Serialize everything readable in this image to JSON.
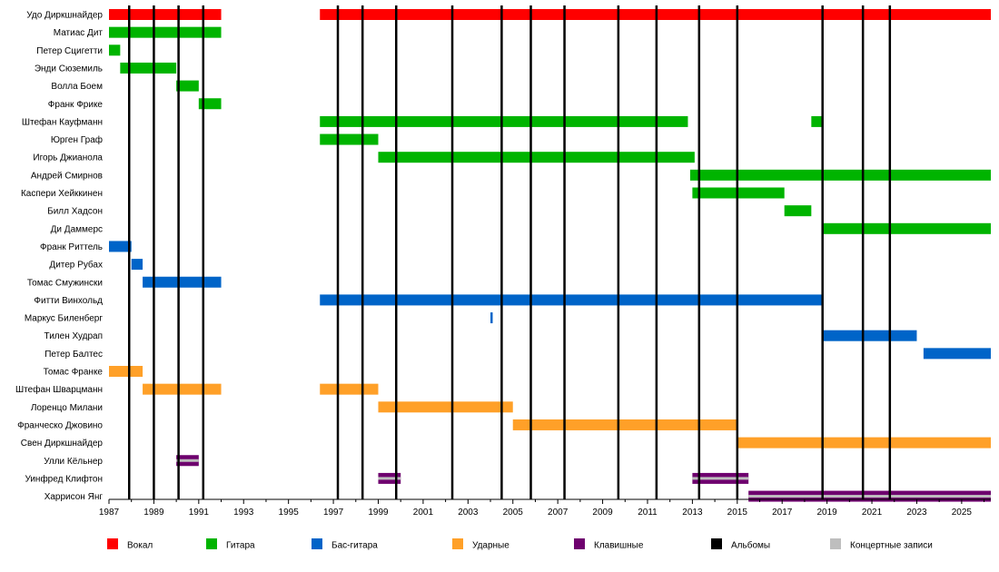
{
  "chart_data": {
    "type": "timeline",
    "title": "",
    "x_range": [
      1987,
      2026.3
    ],
    "x_ticks": [
      "1987",
      "1989",
      "1991",
      "1993",
      "1995",
      "1997",
      "1999",
      "2001",
      "2003",
      "2005",
      "2007",
      "2009",
      "2011",
      "2013",
      "2015",
      "2017",
      "2019",
      "2021",
      "2023",
      "2025"
    ],
    "colors": {
      "vocals": "#ff0000",
      "guitar": "#00b400",
      "bass": "#0064c8",
      "drums": "#ffa028",
      "keys": "#6e006e",
      "albums": "#000000",
      "live": "#bebebe"
    },
    "legend": [
      {
        "key": "vocals",
        "label": "Вокал"
      },
      {
        "key": "guitar",
        "label": "Гитара"
      },
      {
        "key": "bass",
        "label": "Бас-гитара"
      },
      {
        "key": "drums",
        "label": "Ударные"
      },
      {
        "key": "keys",
        "label": "Клавишные"
      },
      {
        "key": "albums",
        "label": "Альбомы"
      },
      {
        "key": "live",
        "label": "Концертные записи"
      }
    ],
    "albums": [
      1987.9,
      1989.0,
      1990.1,
      1991.2,
      1997.2,
      1998.3,
      1999.8,
      2002.3,
      2004.5,
      2005.8,
      2007.3,
      2009.7,
      2011.4,
      2013.3,
      2015.0,
      2018.8,
      2020.6,
      2021.8
    ],
    "members": [
      {
        "name": "Удо Диркшнайдер",
        "spans": [
          {
            "r": "vocals",
            "s": 1987.0,
            "e": 1992.0
          },
          {
            "r": "vocals",
            "s": 1996.4,
            "e": 2026.3
          }
        ]
      },
      {
        "name": "Матиас Дит",
        "spans": [
          {
            "r": "guitar",
            "s": 1987.0,
            "e": 1992.0
          }
        ]
      },
      {
        "name": "Петер Сцигетти",
        "spans": [
          {
            "r": "guitar",
            "s": 1987.0,
            "e": 1987.5
          }
        ]
      },
      {
        "name": "Энди Сюземиль",
        "spans": [
          {
            "r": "guitar",
            "s": 1987.5,
            "e": 1990.0
          }
        ]
      },
      {
        "name": "Волла Боем",
        "spans": [
          {
            "r": "guitar",
            "s": 1990.0,
            "e": 1991.0
          }
        ]
      },
      {
        "name": "Франк Фрике",
        "spans": [
          {
            "r": "guitar",
            "s": 1991.0,
            "e": 1992.0
          }
        ]
      },
      {
        "name": "Штефан Кауфманн",
        "spans": [
          {
            "r": "guitar",
            "s": 1996.4,
            "e": 2012.8
          },
          {
            "r": "guitar",
            "s": 2018.3,
            "e": 2018.8
          }
        ]
      },
      {
        "name": "Юрген Граф",
        "spans": [
          {
            "r": "guitar",
            "s": 1996.4,
            "e": 1999.0
          }
        ]
      },
      {
        "name": "Игорь Джианола",
        "spans": [
          {
            "r": "guitar",
            "s": 1999.0,
            "e": 2013.1
          }
        ]
      },
      {
        "name": "Андрей Смирнов",
        "spans": [
          {
            "r": "guitar",
            "s": 2012.9,
            "e": 2026.3
          }
        ]
      },
      {
        "name": "Каспери Хейккинен",
        "spans": [
          {
            "r": "guitar",
            "s": 2013.0,
            "e": 2017.1
          }
        ]
      },
      {
        "name": "Билл Хадсон",
        "spans": [
          {
            "r": "guitar",
            "s": 2017.1,
            "e": 2018.3
          }
        ]
      },
      {
        "name": "Ди Даммерс",
        "spans": [
          {
            "r": "guitar",
            "s": 2018.8,
            "e": 2026.3
          }
        ]
      },
      {
        "name": "Франк Риттель",
        "spans": [
          {
            "r": "bass",
            "s": 1987.0,
            "e": 1988.0
          }
        ]
      },
      {
        "name": "Дитер Рубах",
        "spans": [
          {
            "r": "bass",
            "s": 1988.0,
            "e": 1988.5
          }
        ]
      },
      {
        "name": "Томас Смужински",
        "spans": [
          {
            "r": "bass",
            "s": 1988.5,
            "e": 1992.0
          }
        ]
      },
      {
        "name": "Фитти Винхольд",
        "spans": [
          {
            "r": "bass",
            "s": 1996.4,
            "e": 2018.8
          }
        ]
      },
      {
        "name": "Маркус Биленберг",
        "spans": [
          {
            "r": "bass",
            "s": 2004.0,
            "e": 2004.1
          }
        ]
      },
      {
        "name": "Тилен Худрап",
        "spans": [
          {
            "r": "bass",
            "s": 2018.8,
            "e": 2023.0
          }
        ]
      },
      {
        "name": "Петер Балтес",
        "spans": [
          {
            "r": "bass",
            "s": 2023.3,
            "e": 2026.3
          }
        ]
      },
      {
        "name": "Томас Франке",
        "spans": [
          {
            "r": "drums",
            "s": 1987.0,
            "e": 1988.5
          }
        ]
      },
      {
        "name": "Штефан Шварцманн",
        "spans": [
          {
            "r": "drums",
            "s": 1988.5,
            "e": 1992.0
          },
          {
            "r": "drums",
            "s": 1996.4,
            "e": 1999.0
          }
        ]
      },
      {
        "name": "Лоренцо Милани",
        "spans": [
          {
            "r": "drums",
            "s": 1999.0,
            "e": 2005.0
          }
        ]
      },
      {
        "name": "Франческо Джовино",
        "spans": [
          {
            "r": "drums",
            "s": 2005.0,
            "e": 2015.0
          }
        ]
      },
      {
        "name": "Свен Диркшнайдер",
        "spans": [
          {
            "r": "drums",
            "s": 2015.0,
            "e": 2026.3
          }
        ]
      },
      {
        "name": "Улли Кёльнер",
        "spans": [
          {
            "r": "keys",
            "s": 1990.0,
            "e": 1991.0,
            "live": true
          }
        ]
      },
      {
        "name": "Уинфред Клифтон",
        "spans": [
          {
            "r": "keys",
            "s": 1999.0,
            "e": 2000.0,
            "live": true
          },
          {
            "r": "keys",
            "s": 2013.0,
            "e": 2015.5,
            "live": true
          }
        ]
      },
      {
        "name": "Харрисон Янг",
        "spans": [
          {
            "r": "keys",
            "s": 2015.5,
            "e": 2026.3,
            "live": true
          }
        ]
      }
    ]
  }
}
